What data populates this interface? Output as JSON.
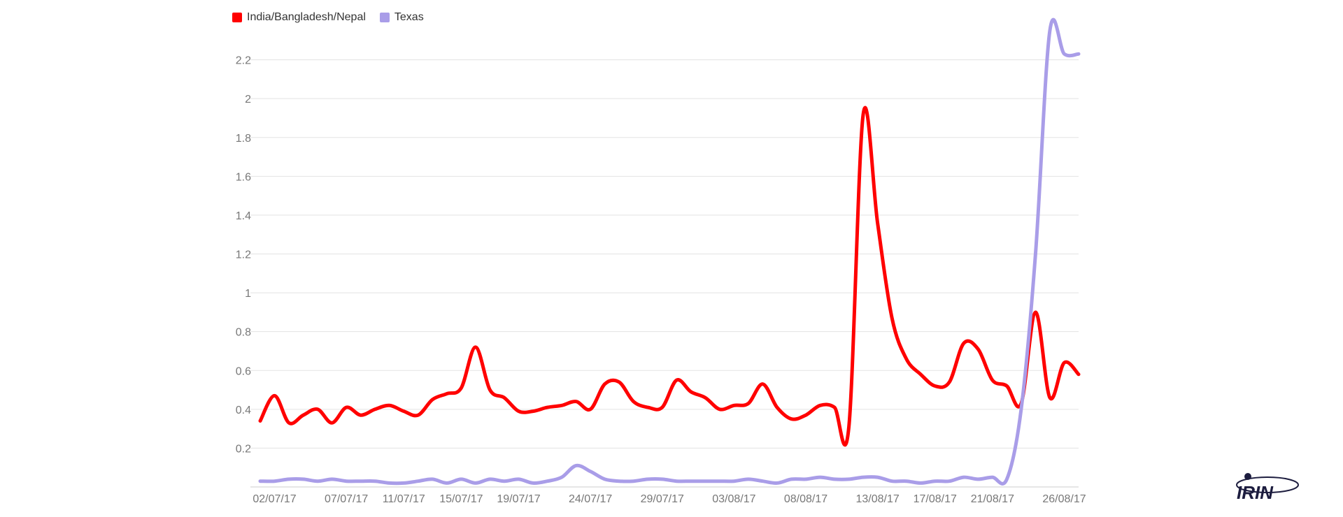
{
  "logo": {
    "text": "IRIN"
  },
  "chart_data": {
    "type": "line",
    "title": "",
    "xlabel": "",
    "ylabel": "",
    "ylim": [
      0,
      2.4
    ],
    "yticks": [
      0.2,
      0.4,
      0.6,
      0.8,
      1,
      1.2,
      1.4,
      1.6,
      1.8,
      2,
      2.2
    ],
    "ytick_labels": [
      "0.2",
      "0.4",
      "0.6",
      "0.8",
      "1",
      "1.2",
      "1.4",
      "1.6",
      "1.8",
      "2",
      "2.2"
    ],
    "grid": true,
    "legend": "top-left",
    "x": [
      "01/07/17",
      "02/07/17",
      "03/07/17",
      "04/07/17",
      "05/07/17",
      "06/07/17",
      "07/07/17",
      "08/07/17",
      "09/07/17",
      "10/07/17",
      "11/07/17",
      "12/07/17",
      "13/07/17",
      "14/07/17",
      "15/07/17",
      "16/07/17",
      "17/07/17",
      "18/07/17",
      "19/07/17",
      "20/07/17",
      "21/07/17",
      "22/07/17",
      "23/07/17",
      "24/07/17",
      "25/07/17",
      "26/07/17",
      "27/07/17",
      "28/07/17",
      "29/07/17",
      "30/07/17",
      "31/07/17",
      "01/08/17",
      "02/08/17",
      "03/08/17",
      "04/08/17",
      "05/08/17",
      "06/08/17",
      "07/08/17",
      "08/08/17",
      "09/08/17",
      "10/08/17",
      "11/08/17",
      "12/08/17",
      "13/08/17",
      "14/08/17",
      "15/08/17",
      "16/08/17",
      "17/08/17",
      "18/08/17",
      "19/08/17",
      "20/08/17",
      "21/08/17",
      "22/08/17",
      "23/08/17",
      "24/08/17",
      "25/08/17",
      "26/08/17",
      "27/08/17"
    ],
    "x_tick_labels": [
      "02/07/17",
      "07/07/17",
      "11/07/17",
      "15/07/17",
      "19/07/17",
      "24/07/17",
      "29/07/17",
      "03/08/17",
      "08/08/17",
      "13/08/17",
      "17/08/17",
      "21/08/17",
      "26/08/17"
    ],
    "series": [
      {
        "name": "India/Bangladesh/Nepal",
        "color": "#ff0000",
        "values": [
          0.34,
          0.47,
          0.33,
          0.37,
          0.4,
          0.33,
          0.41,
          0.37,
          0.4,
          0.42,
          0.39,
          0.37,
          0.45,
          0.48,
          0.51,
          0.72,
          0.5,
          0.46,
          0.39,
          0.39,
          0.41,
          0.42,
          0.44,
          0.4,
          0.53,
          0.54,
          0.44,
          0.41,
          0.41,
          0.55,
          0.49,
          0.46,
          0.4,
          0.42,
          0.43,
          0.53,
          0.41,
          0.35,
          0.37,
          0.42,
          0.41,
          0.31,
          1.92,
          1.36,
          0.87,
          0.66,
          0.58,
          0.52,
          0.54,
          0.74,
          0.71,
          0.55,
          0.52,
          0.43,
          0.9,
          0.46,
          0.64,
          0.58
        ]
      },
      {
        "name": "Texas",
        "color": "#a99de8",
        "values": [
          0.03,
          0.03,
          0.04,
          0.04,
          0.03,
          0.04,
          0.03,
          0.03,
          0.03,
          0.02,
          0.02,
          0.03,
          0.04,
          0.02,
          0.04,
          0.02,
          0.04,
          0.03,
          0.04,
          0.02,
          0.03,
          0.05,
          0.11,
          0.08,
          0.04,
          0.03,
          0.03,
          0.04,
          0.04,
          0.03,
          0.03,
          0.03,
          0.03,
          0.03,
          0.04,
          0.03,
          0.02,
          0.04,
          0.04,
          0.05,
          0.04,
          0.04,
          0.05,
          0.05,
          0.03,
          0.03,
          0.02,
          0.03,
          0.03,
          0.05,
          0.04,
          0.05,
          0.04,
          0.4,
          1.2,
          2.35,
          2.23,
          2.23
        ]
      }
    ]
  }
}
